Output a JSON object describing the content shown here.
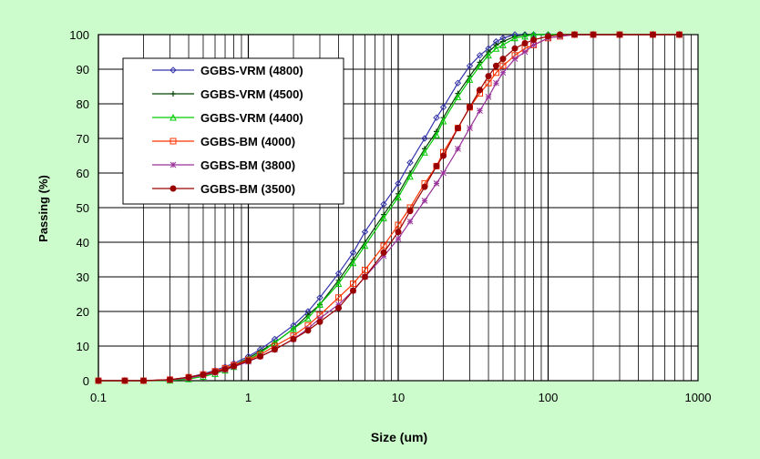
{
  "chart_data": {
    "type": "line",
    "title": "",
    "xlabel": "Size (um)",
    "ylabel": "Passing (%)",
    "xscale": "log",
    "xlim": [
      0.1,
      1000
    ],
    "ylim": [
      0,
      100
    ],
    "xticks": [
      "0.1",
      "1",
      "10",
      "100",
      "1000"
    ],
    "yticks": [
      "0",
      "10",
      "20",
      "30",
      "40",
      "50",
      "60",
      "70",
      "80",
      "90",
      "100"
    ],
    "grid": true,
    "legend_position": "top-left",
    "colors": {
      "background": "#ccfccc",
      "plot_area": "#ffffff",
      "grid": "#000000"
    },
    "x": [
      0.1,
      0.15,
      0.2,
      0.3,
      0.4,
      0.5,
      0.6,
      0.7,
      0.8,
      1,
      1.2,
      1.5,
      2,
      2.5,
      3,
      4,
      5,
      6,
      8,
      10,
      12,
      15,
      18,
      20,
      25,
      30,
      35,
      40,
      45,
      50,
      60,
      70,
      80,
      100,
      120,
      150,
      200,
      300,
      500,
      750
    ],
    "series": [
      {
        "name": "GGBS-VRM (4800)",
        "color": "#3333aa",
        "marker": "diamond",
        "values": [
          0,
          0,
          0,
          0.3,
          1,
          2,
          3,
          4,
          5,
          7,
          9,
          12,
          16,
          20,
          24,
          31,
          37,
          43,
          51,
          57,
          63,
          70,
          76,
          79,
          86,
          91,
          94,
          96,
          98,
          99,
          100,
          100,
          100,
          100,
          100,
          100,
          100,
          100,
          100,
          100
        ]
      },
      {
        "name": "GGBS-VRM (4500)",
        "color": "#004400",
        "marker": "plus",
        "values": [
          0,
          0,
          0,
          0.2,
          0.8,
          1.6,
          2.5,
          3.5,
          4.5,
          6.5,
          8.5,
          11,
          15,
          19,
          22,
          29,
          35,
          40,
          48,
          54,
          60,
          67,
          72,
          76,
          83,
          88,
          92,
          95,
          97,
          98,
          99.5,
          100,
          100,
          100,
          100,
          100,
          100,
          100,
          100,
          100
        ]
      },
      {
        "name": "GGBS-VRM (4400)",
        "color": "#00cc00",
        "marker": "triangle",
        "values": [
          0,
          0,
          0,
          0.1,
          0.5,
          1.2,
          2,
          3,
          4,
          6,
          8,
          11,
          15,
          18,
          22,
          28,
          34,
          39,
          47,
          53,
          59,
          66,
          71,
          75,
          82,
          87,
          91,
          94,
          96,
          97,
          99,
          99.5,
          100,
          100,
          100,
          100,
          100,
          100,
          100,
          100
        ]
      },
      {
        "name": "GGBS-BM (4000)",
        "color": "#ff3300",
        "marker": "square",
        "values": [
          0,
          0,
          0,
          0.3,
          1,
          1.8,
          2.7,
          3.6,
          4.5,
          6,
          7.5,
          10,
          13,
          16,
          19,
          24,
          28,
          32,
          39,
          45,
          50,
          57,
          62,
          66,
          73,
          79,
          83,
          86,
          89,
          91,
          94,
          96,
          97,
          99,
          99.5,
          100,
          100,
          100,
          100,
          100
        ]
      },
      {
        "name": "GGBS-BM (3800)",
        "color": "#993399",
        "marker": "star",
        "values": [
          0,
          0,
          0,
          0.2,
          0.8,
          1.5,
          2.3,
          3.1,
          4,
          5.5,
          7,
          9,
          12,
          15,
          18,
          22,
          26,
          30,
          36,
          41,
          46,
          52,
          57,
          60,
          67,
          73,
          78,
          82,
          86,
          89,
          93,
          95,
          97,
          99,
          99.5,
          100,
          100,
          100,
          100,
          100
        ]
      },
      {
        "name": "GGBS-BM (3500)",
        "color": "#990000",
        "marker": "circle",
        "values": [
          0,
          0,
          0,
          0.3,
          1,
          1.7,
          2.5,
          3.3,
          4.2,
          5.7,
          7,
          9,
          12,
          14.5,
          17,
          21,
          26,
          30,
          37,
          43,
          49,
          56,
          62,
          65,
          73,
          79,
          84,
          88,
          91,
          93,
          96,
          97.5,
          98.5,
          99.5,
          100,
          100,
          100,
          100,
          100,
          100
        ]
      }
    ]
  }
}
